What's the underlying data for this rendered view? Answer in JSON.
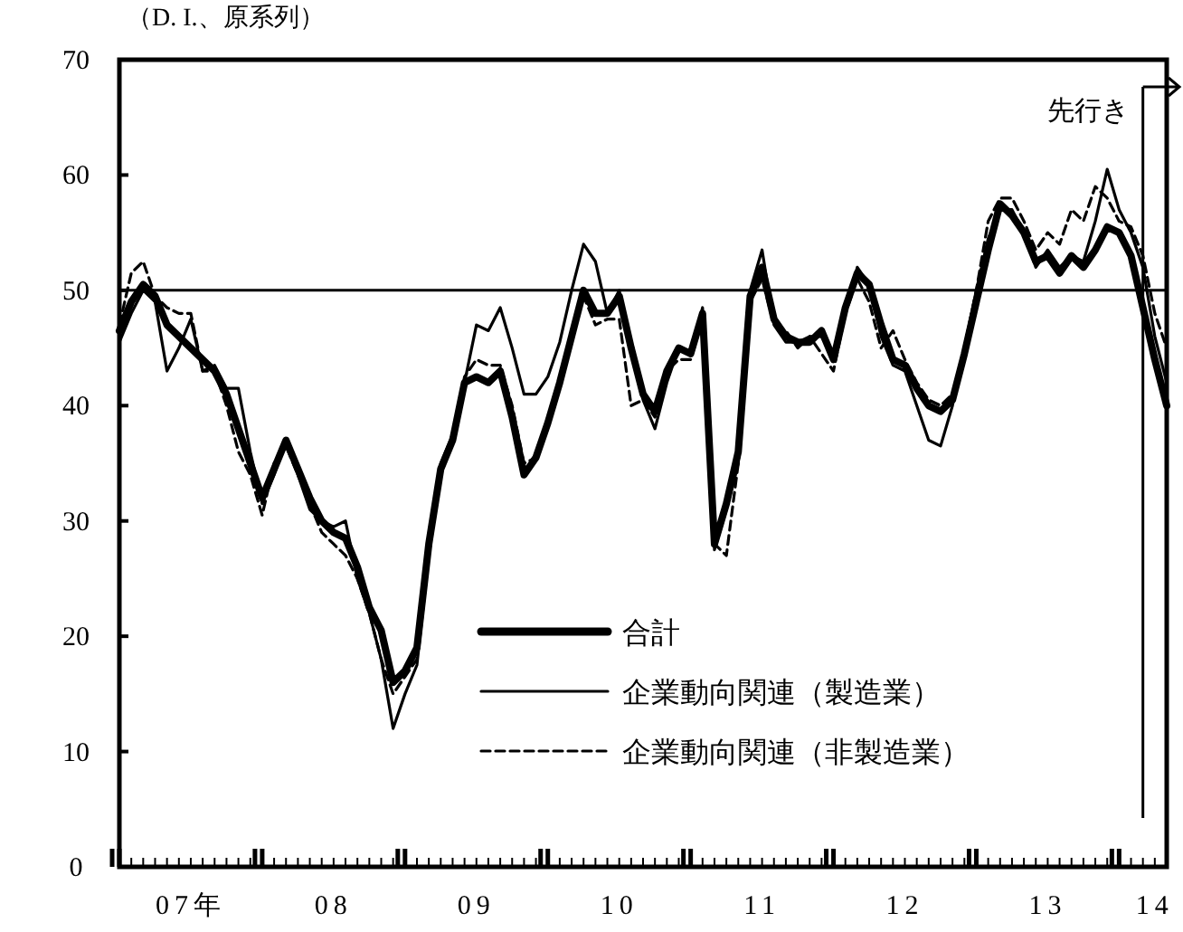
{
  "chart_data": {
    "type": "line",
    "ylabel": "（D. I.、原系列）",
    "x": [
      "2007-01",
      "2007-02",
      "2007-03",
      "2007-04",
      "2007-05",
      "2007-06",
      "2007-07",
      "2007-08",
      "2007-09",
      "2007-10",
      "2007-11",
      "2007-12",
      "2008-01",
      "2008-02",
      "2008-03",
      "2008-04",
      "2008-05",
      "2008-06",
      "2008-07",
      "2008-08",
      "2008-09",
      "2008-10",
      "2008-11",
      "2008-12",
      "2009-01",
      "2009-02",
      "2009-03",
      "2009-04",
      "2009-05",
      "2009-06",
      "2009-07",
      "2009-08",
      "2009-09",
      "2009-10",
      "2009-11",
      "2009-12",
      "2010-01",
      "2010-02",
      "2010-03",
      "2010-04",
      "2010-05",
      "2010-06",
      "2010-07",
      "2010-08",
      "2010-09",
      "2010-10",
      "2010-11",
      "2010-12",
      "2011-01",
      "2011-02",
      "2011-03",
      "2011-04",
      "2011-05",
      "2011-06",
      "2011-07",
      "2011-08",
      "2011-09",
      "2011-10",
      "2011-11",
      "2011-12",
      "2012-01",
      "2012-02",
      "2012-03",
      "2012-04",
      "2012-05",
      "2012-06",
      "2012-07",
      "2012-08",
      "2012-09",
      "2012-10",
      "2012-11",
      "2012-12",
      "2013-01",
      "2013-02",
      "2013-03",
      "2013-04",
      "2013-05",
      "2013-06",
      "2013-07",
      "2013-08",
      "2013-09",
      "2013-10",
      "2013-11",
      "2013-12",
      "2014-01",
      "2014-02",
      "2014-03",
      "2014-04",
      "2014-05"
    ],
    "xlim": [
      "2007-01",
      "2014-05"
    ],
    "xticks": [
      {
        "value": "2007-07",
        "label": "07年"
      },
      {
        "value": "2008-07",
        "label": "08"
      },
      {
        "value": "2009-07",
        "label": "09"
      },
      {
        "value": "2010-07",
        "label": "10"
      },
      {
        "value": "2011-07",
        "label": "11"
      },
      {
        "value": "2012-07",
        "label": "12"
      },
      {
        "value": "2013-07",
        "label": "13"
      },
      {
        "value": "2014-04",
        "label": "14"
      }
    ],
    "ylim": [
      0,
      70
    ],
    "yticks": [
      0,
      10,
      20,
      30,
      40,
      50,
      60,
      70
    ],
    "grid": false,
    "legend": "bottom",
    "ref_lines": [
      {
        "axis": "y",
        "value": 50
      },
      {
        "axis": "x",
        "value": "2014-03",
        "label": "先行き"
      }
    ],
    "series": [
      {
        "name": "合計",
        "color": "#000000",
        "line_style": "solid",
        "values": [
          46.5,
          49,
          50.5,
          49.5,
          47,
          46,
          45,
          44,
          43,
          41,
          38,
          35,
          32,
          34.5,
          37,
          34.5,
          32,
          30,
          29,
          28.5,
          26,
          22.5,
          20.5,
          16,
          17,
          19,
          28,
          34.5,
          37,
          42,
          42.5,
          42,
          43,
          39,
          34,
          35.5,
          38.5,
          42,
          46,
          50,
          48,
          48,
          49.5,
          45,
          41,
          39.5,
          43,
          45,
          44.5,
          48,
          28,
          31.5,
          36,
          49.5,
          52,
          47.5,
          46,
          45.5,
          45.5,
          46.5,
          44,
          48.5,
          51.5,
          50.5,
          47,
          44,
          43.5,
          41.5,
          40,
          39.5,
          40.5,
          44.5,
          49,
          53.5,
          57.5,
          56.5,
          55,
          52.5,
          53,
          51.5,
          53,
          52,
          53.5,
          55.5,
          55,
          53,
          48.5,
          44,
          40
        ]
      },
      {
        "name": "企業動向関連（製造業）",
        "color": "#000000",
        "line_style": "solid",
        "values": [
          45.5,
          48,
          50,
          49,
          43,
          45,
          47.5,
          43,
          43.5,
          41.5,
          41.5,
          36,
          31.5,
          34,
          37,
          34,
          31,
          30,
          29.5,
          30,
          25,
          22,
          18,
          12,
          15,
          17.5,
          27,
          35,
          37.5,
          42,
          47,
          46.5,
          48.5,
          45,
          41,
          41,
          42.5,
          45.5,
          50,
          54,
          52.5,
          48,
          50,
          44.5,
          40.5,
          38,
          42,
          45,
          44.5,
          48.5,
          27.5,
          31,
          35,
          50,
          53.5,
          47,
          45.5,
          45.5,
          46,
          46,
          44,
          48,
          52,
          50.5,
          46,
          43.5,
          43,
          40,
          37,
          36.5,
          40,
          45,
          50,
          54.5,
          57,
          57,
          55,
          52,
          53.5,
          52,
          53,
          52.5,
          56,
          60.5,
          57,
          55,
          52,
          46,
          42
        ]
      },
      {
        "name": "企業動向関連（非製造業）",
        "color": "#000000",
        "line_style": "dashed",
        "values": [
          47,
          51.5,
          52.5,
          49.5,
          48.5,
          48,
          48,
          43,
          43,
          40,
          36,
          34,
          30.5,
          35,
          36.5,
          34,
          31.5,
          29,
          28,
          27,
          25,
          22,
          18,
          15,
          16.5,
          18,
          27,
          34,
          37,
          42.5,
          44,
          43.5,
          43.5,
          40,
          35,
          35.5,
          39,
          42,
          46,
          49.5,
          47,
          47.5,
          47.5,
          40,
          40.5,
          39,
          43,
          44,
          44,
          47.5,
          28,
          27,
          35,
          49,
          51,
          47,
          46.5,
          45,
          46,
          44.5,
          43,
          48,
          51,
          49,
          45,
          46.5,
          44,
          42,
          40.5,
          40,
          41,
          45,
          50,
          56,
          58,
          58,
          56,
          53.5,
          55,
          54,
          57,
          56,
          59,
          58,
          56,
          55.5,
          53,
          48,
          45
        ]
      }
    ]
  }
}
